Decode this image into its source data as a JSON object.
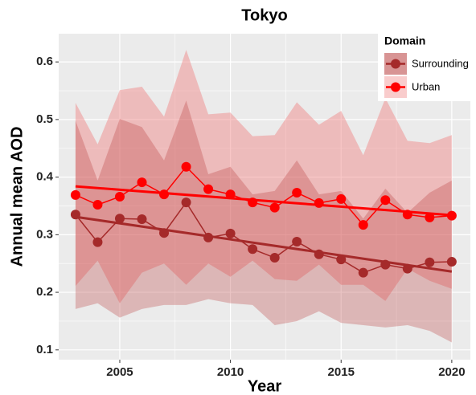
{
  "chart_data": {
    "type": "line",
    "title": "Tokyo",
    "x_label": "Year",
    "y_label": "Annual mean AOD",
    "x": [
      2003,
      2004,
      2005,
      2006,
      2007,
      2008,
      2009,
      2010,
      2011,
      2012,
      2013,
      2014,
      2015,
      2016,
      2017,
      2018,
      2019,
      2020
    ],
    "xlim": [
      2002.24,
      2020.84
    ],
    "xticks": [
      2005,
      2010,
      2015,
      2020
    ],
    "ylim": [
      0.083,
      0.649
    ],
    "yticks": [
      0.1,
      0.2,
      0.3,
      0.4,
      0.5,
      0.6
    ],
    "grid": true,
    "legend_title": "Domain",
    "legend_position": "top-right",
    "series": [
      {
        "name": "Surrounding",
        "color": "#a52a2a",
        "band_color": "#b83c3c",
        "values": [
          0.335,
          0.287,
          0.328,
          0.327,
          0.303,
          0.356,
          0.295,
          0.302,
          0.275,
          0.26,
          0.288,
          0.266,
          0.257,
          0.234,
          0.248,
          0.241,
          0.252,
          0.253
        ],
        "trend": [
          0.331,
          0.236
        ],
        "band_upper": [
          0.498,
          0.394,
          0.501,
          0.487,
          0.429,
          0.533,
          0.405,
          0.418,
          0.37,
          0.376,
          0.429,
          0.37,
          0.376,
          0.328,
          0.38,
          0.338,
          0.373,
          0.394
        ],
        "band_lower": [
          0.171,
          0.181,
          0.156,
          0.171,
          0.178,
          0.178,
          0.188,
          0.181,
          0.178,
          0.143,
          0.15,
          0.167,
          0.147,
          0.143,
          0.139,
          0.143,
          0.133,
          0.113
        ]
      },
      {
        "name": "Urban",
        "color": "#ff0000",
        "band_color": "#f08080",
        "values": [
          0.369,
          0.352,
          0.366,
          0.391,
          0.37,
          0.418,
          0.379,
          0.37,
          0.356,
          0.347,
          0.373,
          0.355,
          0.362,
          0.317,
          0.36,
          0.335,
          0.33,
          0.333
        ],
        "trend": [
          0.384,
          0.334
        ],
        "band_upper": [
          0.529,
          0.457,
          0.551,
          0.557,
          0.505,
          0.621,
          0.509,
          0.512,
          0.471,
          0.473,
          0.53,
          0.491,
          0.515,
          0.438,
          0.537,
          0.463,
          0.459,
          0.473
        ],
        "band_lower": [
          0.211,
          0.255,
          0.181,
          0.234,
          0.25,
          0.213,
          0.25,
          0.227,
          0.255,
          0.223,
          0.22,
          0.248,
          0.213,
          0.213,
          0.185,
          0.241,
          0.22,
          0.206
        ]
      }
    ]
  }
}
